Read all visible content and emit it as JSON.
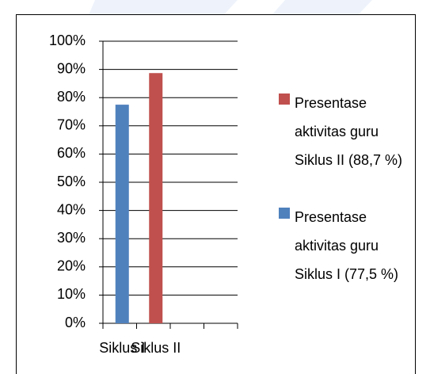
{
  "chart_data": {
    "type": "bar",
    "categories": [
      "Siklus I",
      "Siklus II",
      null,
      null
    ],
    "series": [
      {
        "name": "Presentase aktivitas guru Siklus II (88,7 %)",
        "color": "#c0504d",
        "values": [
          null,
          88.7,
          null,
          null
        ]
      },
      {
        "name": "Presentase aktivitas guru Siklus I (77,5 %)",
        "color": "#4f81bd",
        "values": [
          77.5,
          null,
          null,
          null
        ]
      }
    ],
    "ylim": [
      0,
      100
    ],
    "yticks": [
      {
        "value": 0,
        "label": "0%"
      },
      {
        "value": 10,
        "label": "10%"
      },
      {
        "value": 20,
        "label": "20%"
      },
      {
        "value": 30,
        "label": "30%"
      },
      {
        "value": 40,
        "label": "40%"
      },
      {
        "value": 50,
        "label": "50%"
      },
      {
        "value": 60,
        "label": "60%"
      },
      {
        "value": 70,
        "label": "70%"
      },
      {
        "value": 80,
        "label": "80%"
      },
      {
        "value": 90,
        "label": "90%"
      },
      {
        "value": 100,
        "label": "100%"
      }
    ],
    "grid": true,
    "legend": "right"
  }
}
